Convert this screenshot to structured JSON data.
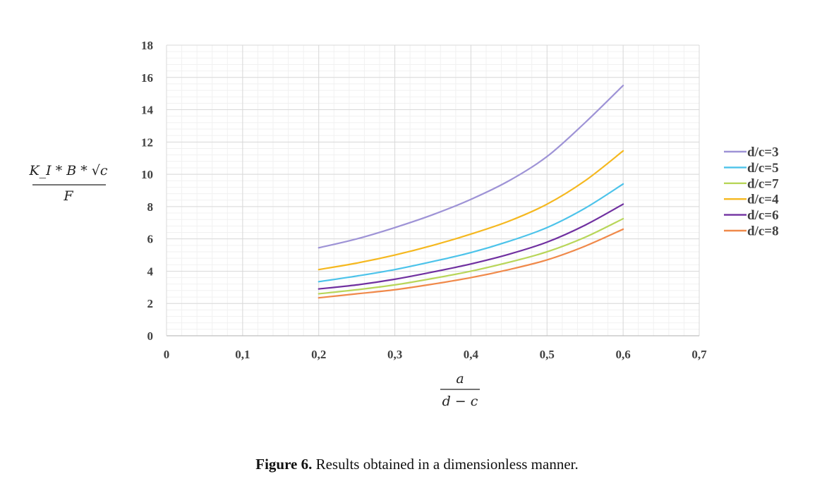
{
  "chart_data": {
    "type": "line",
    "xlabel": {
      "numerator": "a",
      "denominator": "d − c"
    },
    "ylabel": {
      "numerator": "K_I * B * √c",
      "denominator": "F"
    },
    "xlim": [
      0,
      0.7
    ],
    "ylim": [
      0,
      18
    ],
    "x_ticks": [
      "0",
      "0,1",
      "0,2",
      "0,3",
      "0,4",
      "0,5",
      "0,6",
      "0,7"
    ],
    "y_ticks": [
      "0",
      "2",
      "4",
      "6",
      "8",
      "10",
      "12",
      "14",
      "16",
      "18"
    ],
    "grid": true,
    "legend_position": "right",
    "x": [
      0.2,
      0.25,
      0.3,
      0.35,
      0.4,
      0.45,
      0.5,
      0.55,
      0.6
    ],
    "series": [
      {
        "name": "d/c=3",
        "color": "#9e93d6",
        "values": [
          5.45,
          6.0,
          6.7,
          7.5,
          8.45,
          9.6,
          11.1,
          13.2,
          15.5
        ]
      },
      {
        "name": "d/c=5",
        "color": "#4cc3ea",
        "values": [
          3.35,
          3.7,
          4.1,
          4.6,
          5.15,
          5.85,
          6.7,
          7.9,
          9.4
        ]
      },
      {
        "name": "d/c=7",
        "color": "#b8d65a",
        "values": [
          2.6,
          2.85,
          3.15,
          3.55,
          4.0,
          4.55,
          5.2,
          6.1,
          7.25
        ]
      },
      {
        "name": "d/c=4",
        "color": "#f5b81f",
        "values": [
          4.1,
          4.5,
          5.0,
          5.6,
          6.3,
          7.1,
          8.15,
          9.6,
          11.45
        ]
      },
      {
        "name": "d/c=6",
        "color": "#7030a0",
        "values": [
          2.9,
          3.15,
          3.5,
          3.95,
          4.45,
          5.05,
          5.8,
          6.85,
          8.15
        ]
      },
      {
        "name": "d/c=8",
        "color": "#f0894a",
        "values": [
          2.35,
          2.6,
          2.85,
          3.2,
          3.6,
          4.1,
          4.7,
          5.55,
          6.6
        ]
      }
    ]
  },
  "caption": {
    "label": "Figure 6.",
    "text": " Results obtained in a dimensionless manner."
  }
}
